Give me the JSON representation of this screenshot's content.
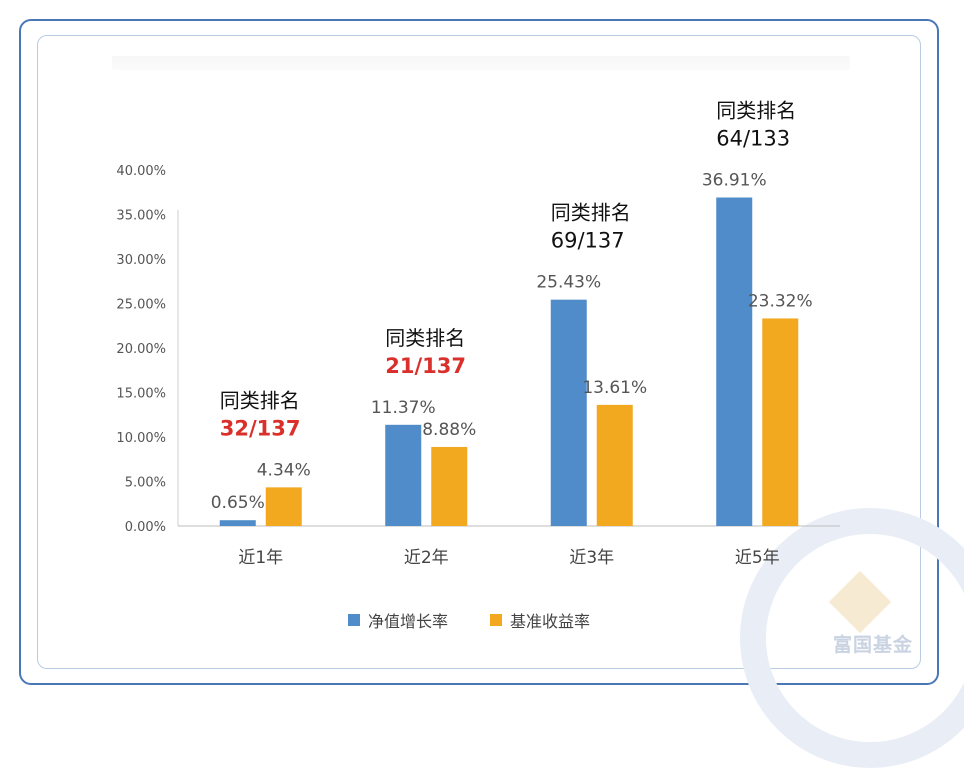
{
  "chart_data": {
    "type": "bar",
    "categories": [
      "近1年",
      "近2年",
      "近3年",
      "近5年"
    ],
    "series": [
      {
        "name": "净值增长率",
        "values": [
          0.65,
          11.37,
          25.43,
          36.91
        ],
        "labels": [
          "0.65%",
          "11.37%",
          "25.43%",
          "36.91%"
        ],
        "color": "#4f8cc9"
      },
      {
        "name": "基准收益率",
        "values": [
          4.34,
          8.88,
          13.61,
          23.32
        ],
        "labels": [
          "4.34%",
          "8.88%",
          "13.61%",
          "23.32%"
        ],
        "color": "#f2a81f"
      }
    ],
    "ylim": [
      0,
      40
    ],
    "yticks": [
      "0.00%",
      "5.00%",
      "10.00%",
      "15.00%",
      "20.00%",
      "25.00%",
      "30.00%",
      "35.00%",
      "40.00%"
    ],
    "legend_position": "bottom",
    "grid": false,
    "annotations": [
      {
        "label": "同类排名",
        "rank": "32/137",
        "highlight": true
      },
      {
        "label": "同类排名",
        "rank": "21/137",
        "highlight": true
      },
      {
        "label": "同类排名",
        "rank": "69/137",
        "highlight": false
      },
      {
        "label": "同类排名",
        "rank": "64/133",
        "highlight": false
      }
    ],
    "highlight_color": "#d9302c"
  },
  "watermark": "富国基金"
}
